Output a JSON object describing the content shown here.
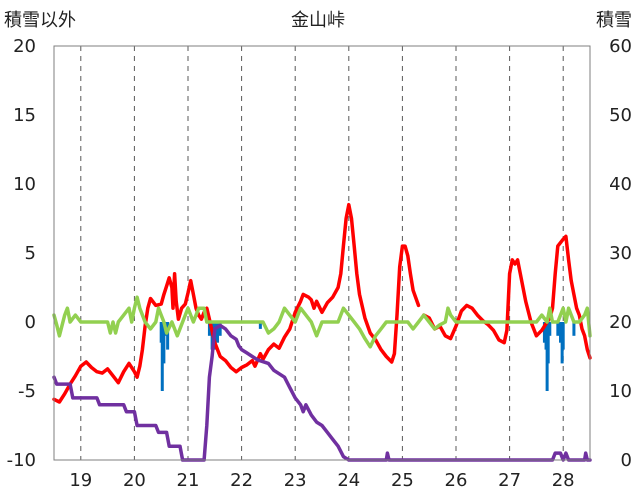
{
  "chart_data": {
    "type": "line",
    "title": "金山峠",
    "ylabel_left": "積雪以外",
    "ylabel_right": "積雪",
    "ylim_left": [
      -10,
      20
    ],
    "ylim_right": [
      0,
      60
    ],
    "yticks_left": [
      "20",
      "15",
      "10",
      "5",
      "0",
      "-5",
      "-10"
    ],
    "yticks_right": [
      "60",
      "50",
      "40",
      "30",
      "20",
      "10",
      "0"
    ],
    "xlim": [
      18.5,
      28.5
    ],
    "xticks": [
      "19",
      "20",
      "21",
      "22",
      "23",
      "24",
      "25",
      "26",
      "27",
      "28"
    ],
    "grid": "vertical dashed at day labels",
    "series": [
      {
        "color": "#ff0000",
        "axis": "left",
        "points": [
          [
            18.5,
            -5.6
          ],
          [
            18.6,
            -5.8
          ],
          [
            18.7,
            -5.2
          ],
          [
            18.8,
            -4.5
          ],
          [
            18.9,
            -3.9
          ],
          [
            19.0,
            -3.2
          ],
          [
            19.1,
            -2.9
          ],
          [
            19.2,
            -3.3
          ],
          [
            19.3,
            -3.6
          ],
          [
            19.4,
            -3.7
          ],
          [
            19.5,
            -3.4
          ],
          [
            19.6,
            -3.9
          ],
          [
            19.7,
            -4.4
          ],
          [
            19.8,
            -3.6
          ],
          [
            19.9,
            -3.0
          ],
          [
            20.0,
            -3.6
          ],
          [
            20.05,
            -4.0
          ],
          [
            20.1,
            -3.2
          ],
          [
            20.15,
            -2.0
          ],
          [
            20.2,
            -0.3
          ],
          [
            20.25,
            1.0
          ],
          [
            20.3,
            1.7
          ],
          [
            20.4,
            1.2
          ],
          [
            20.5,
            1.3
          ],
          [
            20.55,
            2.0
          ],
          [
            20.6,
            2.6
          ],
          [
            20.65,
            3.2
          ],
          [
            20.7,
            2.5
          ],
          [
            20.72,
            1.0
          ],
          [
            20.75,
            3.5
          ],
          [
            20.78,
            1.5
          ],
          [
            20.82,
            0.2
          ],
          [
            20.88,
            1.0
          ],
          [
            20.95,
            1.3
          ],
          [
            21.0,
            2.1
          ],
          [
            21.05,
            3.0
          ],
          [
            21.1,
            2.0
          ],
          [
            21.15,
            1.0
          ],
          [
            21.2,
            0.5
          ],
          [
            21.25,
            0.2
          ],
          [
            21.3,
            0.7
          ],
          [
            21.35,
            1.0
          ],
          [
            21.4,
            0.2
          ],
          [
            21.5,
            -1.5
          ],
          [
            21.6,
            -2.5
          ],
          [
            21.7,
            -2.8
          ],
          [
            21.8,
            -3.3
          ],
          [
            21.9,
            -3.6
          ],
          [
            22.0,
            -3.3
          ],
          [
            22.1,
            -3.1
          ],
          [
            22.2,
            -2.8
          ],
          [
            22.25,
            -3.2
          ],
          [
            22.35,
            -2.3
          ],
          [
            22.4,
            -2.7
          ],
          [
            22.5,
            -2.0
          ],
          [
            22.6,
            -1.6
          ],
          [
            22.7,
            -1.9
          ],
          [
            22.8,
            -1.1
          ],
          [
            22.9,
            -0.5
          ],
          [
            23.0,
            0.7
          ],
          [
            23.1,
            1.5
          ],
          [
            23.15,
            2.0
          ],
          [
            23.25,
            1.8
          ],
          [
            23.3,
            1.6
          ],
          [
            23.35,
            1.0
          ],
          [
            23.4,
            1.5
          ],
          [
            23.5,
            0.7
          ],
          [
            23.6,
            1.4
          ],
          [
            23.7,
            1.8
          ],
          [
            23.8,
            2.5
          ],
          [
            23.85,
            3.5
          ],
          [
            23.9,
            5.5
          ],
          [
            23.95,
            7.5
          ],
          [
            24.0,
            8.5
          ],
          [
            24.05,
            7.5
          ],
          [
            24.1,
            5.5
          ],
          [
            24.15,
            3.5
          ],
          [
            24.2,
            2.0
          ],
          [
            24.3,
            0.3
          ],
          [
            24.4,
            -0.8
          ],
          [
            24.5,
            -1.3
          ],
          [
            24.6,
            -2.0
          ],
          [
            24.7,
            -2.5
          ],
          [
            24.8,
            -2.9
          ],
          [
            24.85,
            -2.3
          ],
          [
            24.9,
            0.5
          ],
          [
            24.95,
            4.0
          ],
          [
            25.0,
            5.5
          ],
          [
            25.05,
            5.5
          ],
          [
            25.1,
            4.8
          ],
          [
            25.15,
            3.5
          ],
          [
            25.2,
            2.3
          ],
          [
            25.3,
            1.2
          ],
          null,
          [
            25.4,
            0.5
          ],
          [
            25.5,
            0.3
          ],
          [
            25.6,
            -0.5
          ],
          [
            25.7,
            -0.3
          ],
          [
            25.8,
            -1.0
          ],
          [
            25.9,
            -1.2
          ],
          [
            26.0,
            -0.3
          ],
          [
            26.1,
            0.8
          ],
          [
            26.2,
            1.2
          ],
          [
            26.3,
            1.0
          ],
          [
            26.4,
            0.5
          ],
          [
            26.5,
            0.1
          ],
          [
            26.6,
            -0.2
          ],
          [
            26.7,
            -0.6
          ],
          [
            26.8,
            -1.3
          ],
          [
            26.9,
            -1.5
          ],
          [
            26.95,
            -0.6
          ],
          [
            27.0,
            3.5
          ],
          [
            27.05,
            4.5
          ],
          [
            27.1,
            4.2
          ],
          [
            27.15,
            4.5
          ],
          [
            27.2,
            3.5
          ],
          [
            27.3,
            1.5
          ],
          [
            27.4,
            0.0
          ],
          [
            27.5,
            -1.0
          ],
          [
            27.6,
            -0.6
          ],
          [
            27.7,
            0.0
          ],
          [
            27.75,
            0.3
          ],
          [
            27.8,
            1.0
          ],
          [
            27.85,
            3.5
          ],
          [
            27.9,
            5.5
          ],
          [
            28.0,
            6.0
          ],
          [
            28.05,
            6.2
          ],
          [
            28.1,
            4.5
          ],
          [
            28.15,
            3.0
          ],
          [
            28.2,
            2.0
          ],
          [
            28.25,
            1.0
          ],
          [
            28.3,
            0.5
          ],
          [
            28.35,
            -0.5
          ],
          [
            28.4,
            -1.0
          ],
          [
            28.45,
            -2.0
          ],
          [
            28.5,
            -2.6
          ]
        ]
      },
      {
        "color": "#92d050",
        "axis": "left",
        "points": [
          [
            18.5,
            0.5
          ],
          [
            18.55,
            -0.2
          ],
          [
            18.6,
            -1.0
          ],
          [
            18.7,
            0.5
          ],
          [
            18.75,
            1.0
          ],
          [
            18.8,
            0.0
          ],
          [
            18.9,
            0.5
          ],
          [
            19.0,
            0.0
          ],
          [
            19.5,
            0.0
          ],
          [
            19.55,
            -0.8
          ],
          [
            19.6,
            0.0
          ],
          [
            19.65,
            -0.8
          ],
          [
            19.7,
            0.0
          ],
          [
            19.8,
            0.5
          ],
          [
            19.9,
            1.0
          ],
          [
            19.95,
            0.0
          ],
          [
            20.0,
            1.0
          ],
          [
            20.05,
            1.8
          ],
          [
            20.1,
            1.0
          ],
          [
            20.2,
            0.0
          ],
          [
            20.3,
            -0.5
          ],
          [
            20.4,
            0.0
          ],
          [
            20.45,
            1.0
          ],
          [
            20.5,
            0.5
          ],
          [
            20.55,
            0.0
          ],
          [
            20.6,
            -0.8
          ],
          [
            20.7,
            0.0
          ],
          [
            20.75,
            -0.5
          ],
          [
            20.8,
            -1.0
          ],
          [
            20.9,
            0.0
          ],
          [
            20.95,
            0.5
          ],
          [
            21.0,
            1.0
          ],
          [
            21.05,
            0.5
          ],
          [
            21.1,
            0.0
          ],
          [
            21.2,
            1.0
          ],
          [
            21.3,
            1.0
          ],
          [
            21.35,
            0.0
          ],
          [
            21.5,
            0.0
          ],
          [
            22.0,
            0.0
          ],
          [
            22.4,
            0.0
          ],
          [
            22.5,
            -0.8
          ],
          [
            22.6,
            -0.5
          ],
          [
            22.7,
            0.0
          ],
          [
            22.8,
            1.0
          ],
          [
            22.9,
            0.5
          ],
          [
            23.0,
            0.0
          ],
          [
            23.1,
            1.0
          ],
          [
            23.2,
            0.5
          ],
          [
            23.3,
            0.0
          ],
          [
            23.4,
            -1.0
          ],
          [
            23.5,
            0.0
          ],
          [
            23.6,
            0.0
          ],
          [
            23.8,
            0.0
          ],
          [
            23.9,
            1.0
          ],
          [
            24.0,
            0.5
          ],
          [
            24.1,
            0.0
          ],
          [
            24.2,
            -0.5
          ],
          [
            24.3,
            -1.2
          ],
          [
            24.4,
            -1.8
          ],
          [
            24.5,
            -1.0
          ],
          [
            24.6,
            -0.5
          ],
          [
            24.7,
            0.0
          ],
          [
            24.8,
            0.0
          ],
          [
            25.0,
            0.0
          ],
          [
            25.1,
            0.0
          ],
          [
            25.2,
            -0.5
          ],
          [
            25.3,
            0.0
          ],
          [
            25.4,
            0.5
          ],
          [
            25.5,
            0.0
          ],
          [
            25.6,
            -0.5
          ],
          [
            25.7,
            -0.2
          ],
          [
            25.8,
            0.0
          ],
          [
            25.85,
            1.0
          ],
          [
            25.9,
            0.5
          ],
          [
            26.0,
            0.0
          ],
          [
            26.4,
            0.0
          ],
          [
            26.5,
            0.0
          ],
          [
            26.6,
            0.0
          ],
          [
            26.8,
            0.0
          ],
          [
            27.0,
            0.0
          ],
          [
            27.2,
            0.0
          ],
          [
            27.4,
            0.0
          ],
          [
            27.5,
            0.0
          ],
          [
            27.6,
            0.5
          ],
          [
            27.7,
            0.0
          ],
          [
            27.75,
            1.0
          ],
          [
            27.8,
            0.0
          ],
          [
            27.9,
            0.0
          ],
          [
            28.0,
            1.0
          ],
          [
            28.05,
            0.0
          ],
          [
            28.1,
            1.0
          ],
          [
            28.2,
            0.0
          ],
          [
            28.3,
            0.0
          ],
          [
            28.4,
            0.5
          ],
          [
            28.45,
            1.0
          ],
          [
            28.5,
            -1.0
          ]
        ]
      },
      {
        "color": "#7030a0",
        "axis": "right",
        "points": [
          [
            18.5,
            12.0
          ],
          [
            18.55,
            11.0
          ],
          [
            18.8,
            11.0
          ],
          [
            18.85,
            9.0
          ],
          [
            19.3,
            9.0
          ],
          [
            19.35,
            8.0
          ],
          [
            19.8,
            8.0
          ],
          [
            19.85,
            7.0
          ],
          [
            20.0,
            7.0
          ],
          [
            20.05,
            5.0
          ],
          [
            20.4,
            5.0
          ],
          [
            20.45,
            4.0
          ],
          [
            20.6,
            4.0
          ],
          [
            20.65,
            2.0
          ],
          [
            20.85,
            2.0
          ],
          [
            20.9,
            0.0
          ],
          [
            21.3,
            0.0
          ],
          [
            21.35,
            5.0
          ],
          [
            21.4,
            12.0
          ],
          [
            21.45,
            15.0
          ],
          [
            21.5,
            19.0
          ],
          [
            21.6,
            19.5
          ],
          [
            21.7,
            19.0
          ],
          [
            21.8,
            18.0
          ],
          [
            21.9,
            17.5
          ],
          [
            21.95,
            16.5
          ],
          [
            22.0,
            16.0
          ],
          [
            22.1,
            15.5
          ],
          [
            22.2,
            15.0
          ],
          [
            22.3,
            14.5
          ],
          [
            22.5,
            14.0
          ],
          [
            22.6,
            13.0
          ],
          [
            22.8,
            12.0
          ],
          [
            22.9,
            10.5
          ],
          [
            23.0,
            9.0
          ],
          [
            23.1,
            8.0
          ],
          [
            23.15,
            7.0
          ],
          [
            23.2,
            8.0
          ],
          [
            23.3,
            6.5
          ],
          [
            23.4,
            5.5
          ],
          [
            23.5,
            5.0
          ],
          [
            23.6,
            4.0
          ],
          [
            23.7,
            3.0
          ],
          [
            23.8,
            2.0
          ],
          [
            23.9,
            0.5
          ],
          [
            24.0,
            0.0
          ],
          [
            24.7,
            0.0
          ],
          [
            24.72,
            1.0
          ],
          [
            24.75,
            0.0
          ],
          [
            27.8,
            0.0
          ],
          [
            27.85,
            1.0
          ],
          [
            27.95,
            1.0
          ],
          [
            28.0,
            0.0
          ],
          [
            28.05,
            1.0
          ],
          [
            28.1,
            0.0
          ],
          [
            28.4,
            0.0
          ],
          [
            28.42,
            1.0
          ],
          [
            28.45,
            0.0
          ],
          [
            28.5,
            0.0
          ]
        ]
      },
      {
        "color": "#0070c0",
        "axis": "left",
        "type": "bar",
        "points": [
          [
            20.5,
            -1.5
          ],
          [
            20.52,
            -5.0
          ],
          [
            20.55,
            -3.0
          ],
          [
            20.58,
            -1.0
          ],
          [
            20.62,
            -2.0
          ],
          [
            21.4,
            -1.0
          ],
          [
            21.45,
            -2.0
          ],
          [
            21.5,
            -2.0
          ],
          [
            21.55,
            -1.5
          ],
          [
            21.6,
            -1.0
          ],
          [
            22.35,
            -0.5
          ],
          [
            27.65,
            -1.5
          ],
          [
            27.68,
            -2.0
          ],
          [
            27.7,
            -5.0
          ],
          [
            27.72,
            -3.0
          ],
          [
            27.75,
            -1.0
          ],
          [
            27.9,
            -1.0
          ],
          [
            27.95,
            -1.5
          ],
          [
            27.98,
            -3.0
          ],
          [
            28.0,
            -2.0
          ],
          [
            28.2,
            -1.0
          ]
        ]
      }
    ]
  }
}
